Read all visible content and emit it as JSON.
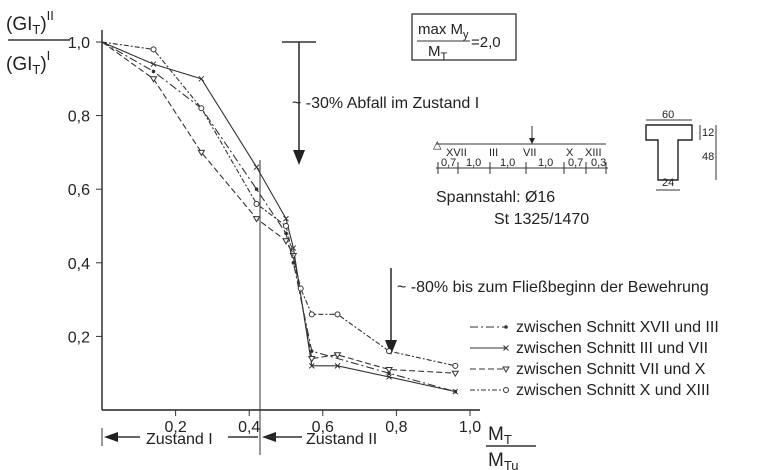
{
  "chart_data": {
    "type": "line",
    "ylabel_top": "(GI",
    "ylabel_top_sub": "T",
    "ylabel_top_sup": "II",
    "ylabel_bottom": "(GI",
    "ylabel_bottom_sub": "T",
    "ylabel_bottom_sup": "I",
    "xlabel_num": "M",
    "xlabel_num_sub": "T",
    "xlabel_den": "M",
    "xlabel_den_sub": "Tu",
    "xlim": [
      0,
      1.0
    ],
    "ylim": [
      0,
      1.0
    ],
    "x_ticks": [
      "0,2",
      "0,4",
      "0,6",
      "0,8",
      "1,0"
    ],
    "y_ticks": [
      "0,2",
      "0,4",
      "0,6",
      "0,8",
      "1,0"
    ],
    "ratio_box": {
      "num": "max M",
      "num_sub": "y",
      "den": "M",
      "den_sub": "T",
      "value": "=2,0"
    },
    "annotations": {
      "drop_30": "~ -30% Abfall im Zustand I",
      "drop_80": "~ -80% bis zum Fließbeginn der Bewehrung",
      "zustand_1": "Zustand I",
      "zustand_2": "Zustand II",
      "steel_line1": "Spannstahl: Ø16",
      "steel_line2": "St 1325/1470"
    },
    "section_labels": [
      "XVII",
      "III",
      "VII",
      "X",
      "XIII"
    ],
    "section_dims": [
      "0,7",
      "1,0",
      "1,0",
      "1,0",
      "0,7",
      "0,3"
    ],
    "cross_section_dims": {
      "width": "60",
      "flange": "12",
      "web_height": "48",
      "web_width": "24"
    },
    "series": [
      {
        "name": "zwischen Schnitt XVII und III",
        "x": [
          0,
          0.14,
          0.27,
          0.42,
          0.5,
          0.52,
          0.57,
          0.78,
          0.96
        ],
        "y": [
          1.0,
          0.92,
          0.82,
          0.6,
          0.48,
          0.4,
          0.16,
          0.1,
          0.05
        ]
      },
      {
        "name": "zwischen Schnitt III und VII",
        "x": [
          0,
          0.14,
          0.27,
          0.42,
          0.5,
          0.52,
          0.57,
          0.64,
          0.78,
          0.96
        ],
        "y": [
          1.0,
          0.94,
          0.9,
          0.66,
          0.52,
          0.44,
          0.12,
          0.12,
          0.09,
          0.05
        ]
      },
      {
        "name": "zwischen Schnitt VII und X",
        "x": [
          0,
          0.14,
          0.27,
          0.42,
          0.5,
          0.52,
          0.57,
          0.64,
          0.78,
          0.96
        ],
        "y": [
          1.0,
          0.9,
          0.7,
          0.52,
          0.46,
          0.42,
          0.14,
          0.15,
          0.11,
          0.1
        ]
      },
      {
        "name": "zwischen Schnitt X und XIII",
        "x": [
          0,
          0.14,
          0.27,
          0.42,
          0.5,
          0.54,
          0.57,
          0.64,
          0.78,
          0.96
        ],
        "y": [
          1.0,
          0.98,
          0.82,
          0.56,
          0.5,
          0.33,
          0.26,
          0.26,
          0.16,
          0.12
        ]
      }
    ],
    "grid": false,
    "legend_position": "bottom-right"
  }
}
